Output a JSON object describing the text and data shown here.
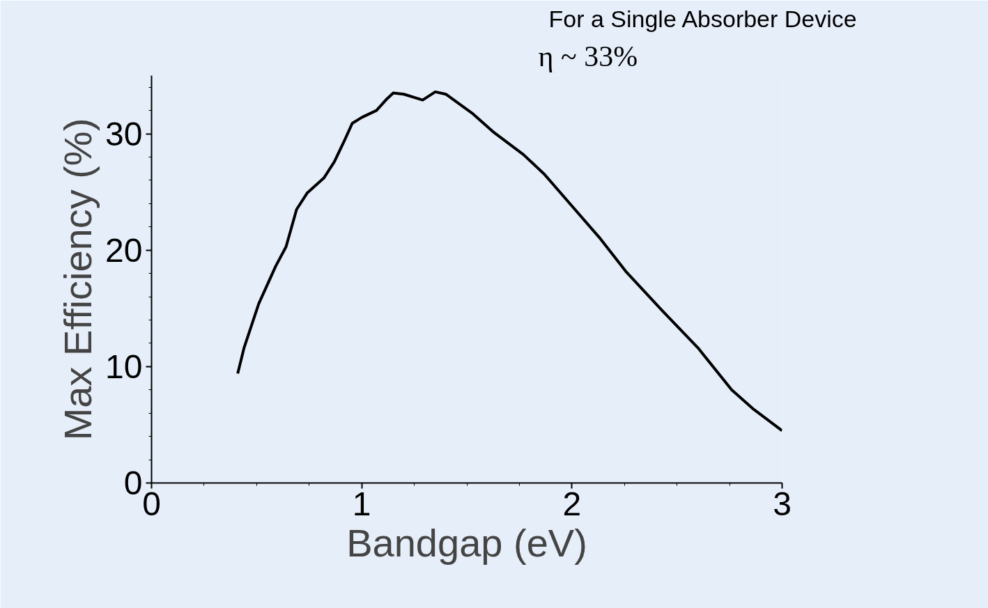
{
  "chart_data": {
    "type": "line",
    "xlabel": "Bandgap (eV)",
    "ylabel": "Max Efficiency (%)",
    "annotations": [
      "η ~ 33%",
      "For a Single Absorber Device"
    ],
    "series": [
      {
        "color": "#000000",
        "x": [
          0.41,
          0.44,
          0.51,
          0.59,
          0.64,
          0.69,
          0.74,
          0.82,
          0.87,
          0.92,
          0.955,
          1.0,
          1.07,
          1.12,
          1.15,
          1.2,
          1.29,
          1.35,
          1.4,
          1.53,
          1.63,
          1.77,
          1.87,
          2.0,
          2.13,
          2.26,
          2.43,
          2.6,
          2.76,
          2.86,
          3.0
        ],
        "values": [
          9.4,
          11.6,
          15.4,
          18.6,
          20.3,
          23.5,
          24.9,
          26.2,
          27.6,
          29.5,
          30.9,
          31.4,
          32.0,
          33.0,
          33.5,
          33.4,
          32.9,
          33.6,
          33.4,
          31.7,
          30.1,
          28.2,
          26.5,
          23.8,
          21.1,
          18.1,
          14.8,
          11.6,
          8.0,
          6.4,
          4.5
        ]
      }
    ],
    "xlim": [
      0,
      3
    ],
    "ylim": [
      0,
      35
    ],
    "xticks": [
      0,
      1,
      2,
      3
    ],
    "yticks": [
      0,
      10,
      20,
      30
    ],
    "grid": false,
    "marker": "none",
    "line_style": "solid"
  }
}
